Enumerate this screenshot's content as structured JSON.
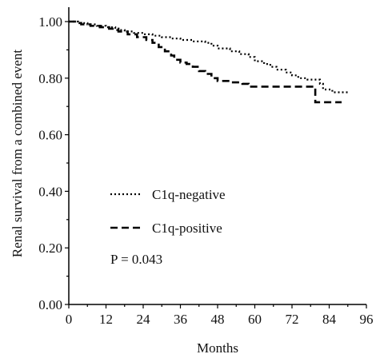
{
  "chart_data": {
    "type": "line",
    "title": "",
    "xlabel": "Months",
    "ylabel": "Renal survival from a combined event",
    "xlim": [
      0,
      96
    ],
    "ylim": [
      0.0,
      1.05
    ],
    "x_ticks": [
      "0",
      "12",
      "24",
      "36",
      "48",
      "60",
      "72",
      "84",
      "96"
    ],
    "y_ticks": [
      "0.00",
      "0.20",
      "0.40",
      "0.60",
      "0.80",
      "1.00"
    ],
    "grid": false,
    "legend_placement": "center-left",
    "annotation": "P = 0.043",
    "series": [
      {
        "name": "C1q-negative",
        "style": "dotted",
        "color": "#000000",
        "points": [
          [
            0,
            1.0
          ],
          [
            3,
            0.995
          ],
          [
            6,
            0.99
          ],
          [
            9,
            0.985
          ],
          [
            12,
            0.98
          ],
          [
            15,
            0.97
          ],
          [
            18,
            0.965
          ],
          [
            21,
            0.96
          ],
          [
            24,
            0.955
          ],
          [
            27,
            0.95
          ],
          [
            30,
            0.945
          ],
          [
            33,
            0.94
          ],
          [
            36,
            0.935
          ],
          [
            40,
            0.93
          ],
          [
            44,
            0.925
          ],
          [
            46,
            0.915
          ],
          [
            48,
            0.905
          ],
          [
            52,
            0.895
          ],
          [
            55,
            0.885
          ],
          [
            58,
            0.875
          ],
          [
            60,
            0.86
          ],
          [
            63,
            0.85
          ],
          [
            65,
            0.84
          ],
          [
            67,
            0.83
          ],
          [
            70,
            0.82
          ],
          [
            72,
            0.81
          ],
          [
            74,
            0.8
          ],
          [
            77,
            0.795
          ],
          [
            79,
            0.795
          ],
          [
            81,
            0.78
          ],
          [
            82,
            0.76
          ],
          [
            85,
            0.75
          ],
          [
            90,
            0.75
          ]
        ]
      },
      {
        "name": "C1q-positive",
        "style": "dashed",
        "color": "#000000",
        "points": [
          [
            0,
            1.0
          ],
          [
            2,
            0.995
          ],
          [
            4,
            0.99
          ],
          [
            7,
            0.985
          ],
          [
            10,
            0.98
          ],
          [
            13,
            0.975
          ],
          [
            16,
            0.965
          ],
          [
            19,
            0.955
          ],
          [
            22,
            0.945
          ],
          [
            25,
            0.935
          ],
          [
            27,
            0.925
          ],
          [
            29,
            0.91
          ],
          [
            31,
            0.895
          ],
          [
            33,
            0.88
          ],
          [
            34,
            0.865
          ],
          [
            36,
            0.855
          ],
          [
            38,
            0.85
          ],
          [
            40,
            0.84
          ],
          [
            42,
            0.825
          ],
          [
            44,
            0.815
          ],
          [
            46,
            0.8
          ],
          [
            48,
            0.79
          ],
          [
            52,
            0.785
          ],
          [
            56,
            0.78
          ],
          [
            58,
            0.77
          ],
          [
            60,
            0.77
          ],
          [
            66,
            0.77
          ],
          [
            74,
            0.77
          ],
          [
            79,
            0.77
          ],
          [
            79.5,
            0.715
          ],
          [
            83,
            0.715
          ],
          [
            88,
            0.715
          ]
        ]
      }
    ]
  }
}
